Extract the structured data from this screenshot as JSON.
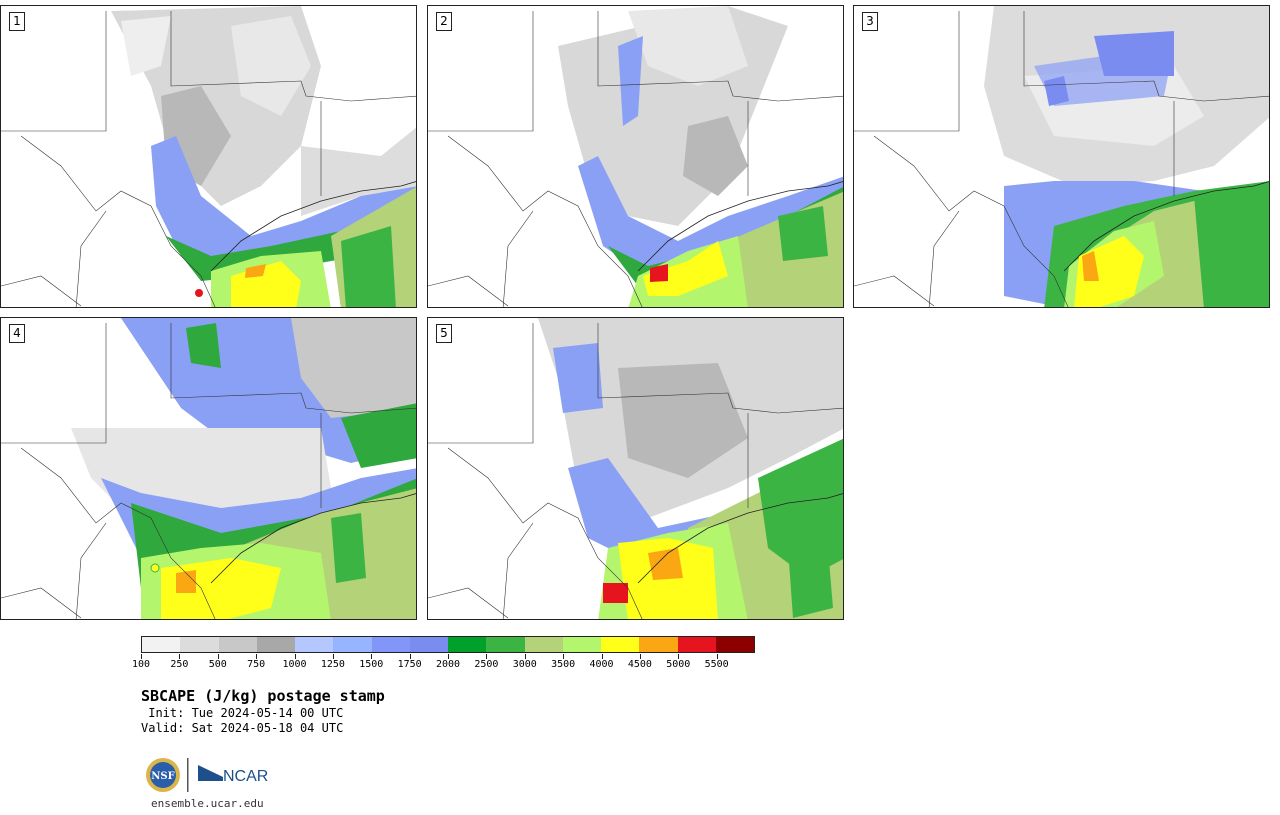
{
  "panels": [
    {
      "num": "1",
      "map": "cape-map-member-1"
    },
    {
      "num": "2",
      "map": "cape-map-member-2"
    },
    {
      "num": "3",
      "map": "cape-map-member-3"
    },
    {
      "num": "4",
      "map": "cape-map-member-4"
    },
    {
      "num": "5",
      "map": "cape-map-member-5"
    }
  ],
  "colorbar": {
    "colors": [
      "#f2f2f2",
      "#dcdcdc",
      "#c8c8c8",
      "#a8a8a8",
      "#b4c8ff",
      "#96b4ff",
      "#8296fa",
      "#7a8cf0",
      "#00a02a",
      "#3cb444",
      "#b4d278",
      "#b4f56e",
      "#ffff19",
      "#fba714",
      "#e6141e",
      "#8c0000"
    ],
    "ticks": [
      "100",
      "250",
      "500",
      "750",
      "1000",
      "1250",
      "1500",
      "1750",
      "2000",
      "2500",
      "3000",
      "3500",
      "4000",
      "4500",
      "5000",
      "5500"
    ]
  },
  "title": "SBCAPE (J/kg) postage stamp",
  "init": " Init: Tue 2024-05-14 00 UTC",
  "valid": "Valid: Sat 2024-05-18 04 UTC",
  "logos": {
    "nsf": "NSF",
    "ncar": "NCAR"
  },
  "url": "ensemble.ucar.edu"
}
